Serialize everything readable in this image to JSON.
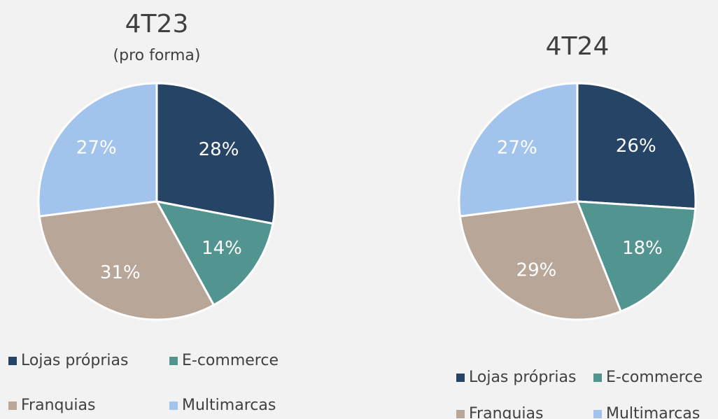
{
  "chart_data": [
    {
      "type": "pie",
      "title": "4T23",
      "subtitle": "(pro forma)",
      "categories": [
        "Lojas próprias",
        "E-commerce",
        "Franquias",
        "Multimarcas"
      ],
      "values": [
        28,
        14,
        31,
        27
      ],
      "value_labels": [
        "28%",
        "14%",
        "31%",
        "27%"
      ],
      "colors": [
        "#264466",
        "#529590",
        "#b8a698",
        "#a2c4ec"
      ]
    },
    {
      "type": "pie",
      "title": "4T24",
      "categories": [
        "Lojas próprias",
        "E-commerce",
        "Franquias",
        "Multimarcas"
      ],
      "values": [
        26,
        18,
        29,
        27
      ],
      "value_labels": [
        "26%",
        "18%",
        "29%",
        "27%"
      ],
      "colors": [
        "#264466",
        "#529590",
        "#b8a698",
        "#a2c4ec"
      ]
    }
  ]
}
